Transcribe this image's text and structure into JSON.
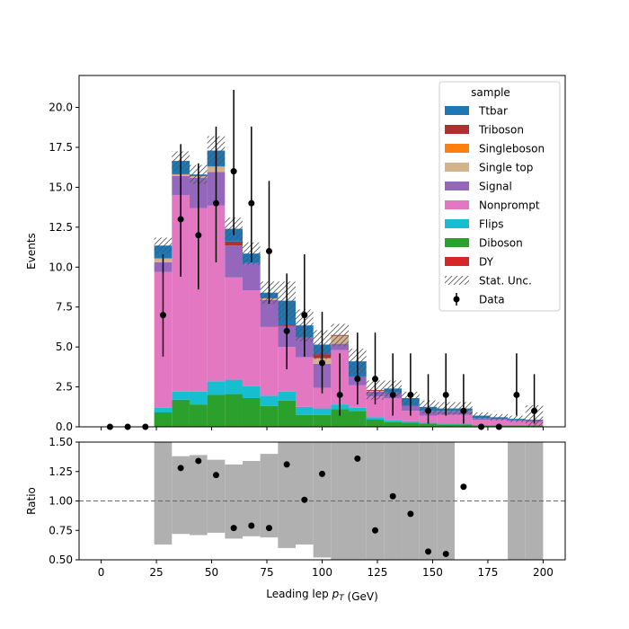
{
  "chart_data": [
    {
      "type": "bar",
      "stacked": true,
      "xlabel": "Leading lep $p_T$ (GeV)",
      "ylabel": "Events",
      "xlim": [
        -10,
        210
      ],
      "ylim": [
        0,
        22
      ],
      "grid": false,
      "bin_edges": [
        0,
        8,
        16,
        24,
        32,
        40,
        48,
        56,
        64,
        72,
        80,
        88,
        96,
        104,
        112,
        120,
        128,
        136,
        144,
        152,
        160,
        168,
        176,
        184,
        192,
        200
      ],
      "x_ticks": [
        0,
        25,
        50,
        75,
        100,
        125,
        150,
        175,
        200
      ],
      "y_ticks": [
        "0.0",
        "2.5",
        "5.0",
        "7.5",
        "10.0",
        "12.5",
        "15.0",
        "17.5",
        "20.0"
      ],
      "series": [
        {
          "name": "DY",
          "color": "#d62728",
          "values": [
            0,
            0,
            0,
            0,
            0,
            0,
            0,
            0,
            0,
            0,
            0,
            0,
            0,
            0,
            0,
            0,
            0,
            0,
            0,
            0,
            0,
            0,
            0,
            0,
            0
          ]
        },
        {
          "name": "Diboson",
          "color": "#2ca02c",
          "values": [
            0,
            0,
            0,
            0.9,
            1.7,
            1.4,
            2.0,
            2.05,
            1.8,
            1.3,
            1.65,
            0.75,
            0.75,
            1.1,
            1.0,
            0.45,
            0.3,
            0.25,
            0.2,
            0.15,
            0.15,
            0.1,
            0.1,
            0.1,
            0.1
          ]
        },
        {
          "name": "Flips",
          "color": "#17becf",
          "values": [
            0,
            0,
            0,
            0.3,
            0.5,
            0.8,
            0.85,
            0.9,
            0.75,
            0.65,
            0.55,
            0.5,
            0.4,
            0.3,
            0.2,
            0.15,
            0.1,
            0.1,
            0.05,
            0.05,
            0.05,
            0,
            0,
            0,
            0
          ]
        },
        {
          "name": "Nonprompt",
          "color": "#e377c2",
          "values": [
            0,
            0,
            0,
            8.5,
            12.3,
            11.5,
            11.0,
            6.4,
            6.0,
            4.3,
            2.8,
            3.1,
            1.3,
            3.4,
            1.4,
            1.3,
            1.4,
            0.65,
            0.45,
            0.55,
            0.55,
            0.35,
            0.35,
            0.25,
            0.2
          ]
        },
        {
          "name": "Signal",
          "color": "#9467bd",
          "values": [
            0,
            0,
            0,
            0.6,
            1.2,
            1.9,
            2.1,
            2.0,
            1.7,
            1.7,
            1.3,
            1.25,
            1.5,
            0.4,
            0.55,
            0.3,
            0.3,
            0.3,
            0.3,
            0.25,
            0.25,
            0.1,
            0.05,
            0.1,
            0.1
          ]
        },
        {
          "name": "Single top",
          "color": "#d4b28c",
          "values": [
            0,
            0,
            0,
            0.25,
            0.1,
            0.1,
            0.35,
            0,
            0,
            0.1,
            0,
            0,
            0.35,
            0.5,
            0,
            0.05,
            0,
            0,
            0,
            0,
            0,
            0,
            0,
            0,
            0
          ]
        },
        {
          "name": "Singleboson",
          "color": "#ff7f0e",
          "values": [
            0,
            0,
            0,
            0,
            0,
            0,
            0,
            0,
            0,
            0,
            0,
            0,
            0,
            0,
            0,
            0,
            0,
            0,
            0,
            0,
            0,
            0,
            0,
            0,
            0
          ]
        },
        {
          "name": "Triboson",
          "color": "#b03030",
          "values": [
            0,
            0,
            0,
            0,
            0.05,
            0,
            0,
            0.25,
            0,
            0,
            0.05,
            0,
            0.25,
            0.05,
            0,
            0.05,
            0.05,
            0,
            0,
            0,
            0,
            0,
            0,
            0,
            0
          ]
        },
        {
          "name": "Ttbar",
          "color": "#1f77b4",
          "values": [
            0,
            0,
            0,
            0.8,
            0.8,
            0.1,
            1.0,
            0.8,
            0.6,
            0.35,
            1.55,
            0.75,
            0.6,
            0,
            0.95,
            0,
            0.25,
            0.5,
            0.25,
            0.15,
            0.15,
            0.15,
            0.1,
            0.05,
            0.05
          ]
        }
      ],
      "stat_unc": [
        0,
        0,
        0,
        0.5,
        0.6,
        0.6,
        0.9,
        0.7,
        0.7,
        0.7,
        1.2,
        1.0,
        0.9,
        0.7,
        0.8,
        0.6,
        0.5,
        0.4,
        0.4,
        0.4,
        0.4,
        0.2,
        0.2,
        0.2,
        0.9
      ],
      "data_points": {
        "name": "Data",
        "x": [
          4,
          12,
          20,
          28,
          36,
          44,
          52,
          60,
          68,
          76,
          84,
          92,
          100,
          108,
          116,
          124,
          132,
          140,
          148,
          156,
          164,
          172,
          180,
          188,
          196
        ],
        "y": [
          0,
          0,
          0,
          7,
          13,
          12,
          14,
          16,
          14,
          11,
          6,
          7,
          4,
          2,
          3,
          3,
          2,
          2,
          1,
          2,
          1,
          0,
          0,
          2,
          1
        ],
        "err_low": [
          0,
          0,
          0,
          2.6,
          3.6,
          3.4,
          3.7,
          4.0,
          3.7,
          3.3,
          2.4,
          2.6,
          1.9,
          1.3,
          1.6,
          1.6,
          1.3,
          1.3,
          0.8,
          1.3,
          0.8,
          0,
          0,
          1.3,
          0.8
        ],
        "err_high": [
          0,
          0,
          0,
          3.8,
          4.7,
          4.5,
          4.8,
          5.1,
          4.8,
          4.4,
          3.6,
          3.8,
          3.2,
          2.6,
          2.9,
          2.9,
          2.6,
          2.6,
          2.3,
          2.6,
          2.3,
          0,
          0,
          2.6,
          2.3
        ]
      },
      "legend": {
        "title": "sample",
        "location": "top-right",
        "entries": [
          "Ttbar",
          "Triboson",
          "Singleboson",
          "Single top",
          "Signal",
          "Nonprompt",
          "Flips",
          "Diboson",
          "DY",
          "Stat. Unc.",
          "Data"
        ]
      }
    },
    {
      "type": "scatter",
      "xlabel": "Leading lep $p_T$ (GeV)",
      "ylabel": "Ratio",
      "xlim": [
        -10,
        210
      ],
      "ylim": [
        0.5,
        1.5
      ],
      "grid": false,
      "reference_line": 1.0,
      "x_ticks": [
        0,
        25,
        50,
        75,
        100,
        125,
        150,
        175,
        200
      ],
      "y_ticks": [
        "0.50",
        "0.75",
        "1.00",
        "1.25",
        "1.50"
      ],
      "unc_band": {
        "color": "#b0b0b0",
        "x_start": [
          24,
          32,
          40,
          48,
          56,
          64,
          72,
          80,
          88,
          96,
          104,
          112,
          120,
          128,
          136,
          144,
          152,
          184,
          192
        ],
        "x_end": [
          32,
          40,
          48,
          56,
          64,
          72,
          80,
          88,
          96,
          104,
          112,
          120,
          128,
          136,
          144,
          152,
          160,
          192,
          200
        ],
        "low": [
          0.63,
          0.72,
          0.71,
          0.73,
          0.68,
          0.7,
          0.69,
          0.6,
          0.63,
          0.52,
          0.5,
          0.5,
          0.5,
          0.5,
          0.5,
          0.5,
          0.5,
          0.5,
          0.5
        ],
        "high": [
          1.5,
          1.38,
          1.39,
          1.35,
          1.31,
          1.34,
          1.4,
          1.5,
          1.5,
          1.5,
          1.5,
          1.5,
          1.5,
          1.5,
          1.5,
          1.5,
          1.5,
          1.5,
          1.5
        ]
      },
      "points": {
        "x": [
          36,
          44,
          52,
          60,
          68,
          76,
          84,
          92,
          100,
          116,
          124,
          132,
          140,
          148,
          156,
          164
        ],
        "y": [
          1.28,
          1.34,
          1.22,
          0.77,
          0.79,
          0.77,
          1.31,
          1.01,
          1.23,
          1.36,
          0.75,
          1.04,
          0.89,
          0.57,
          0.55,
          1.12
        ]
      }
    }
  ]
}
